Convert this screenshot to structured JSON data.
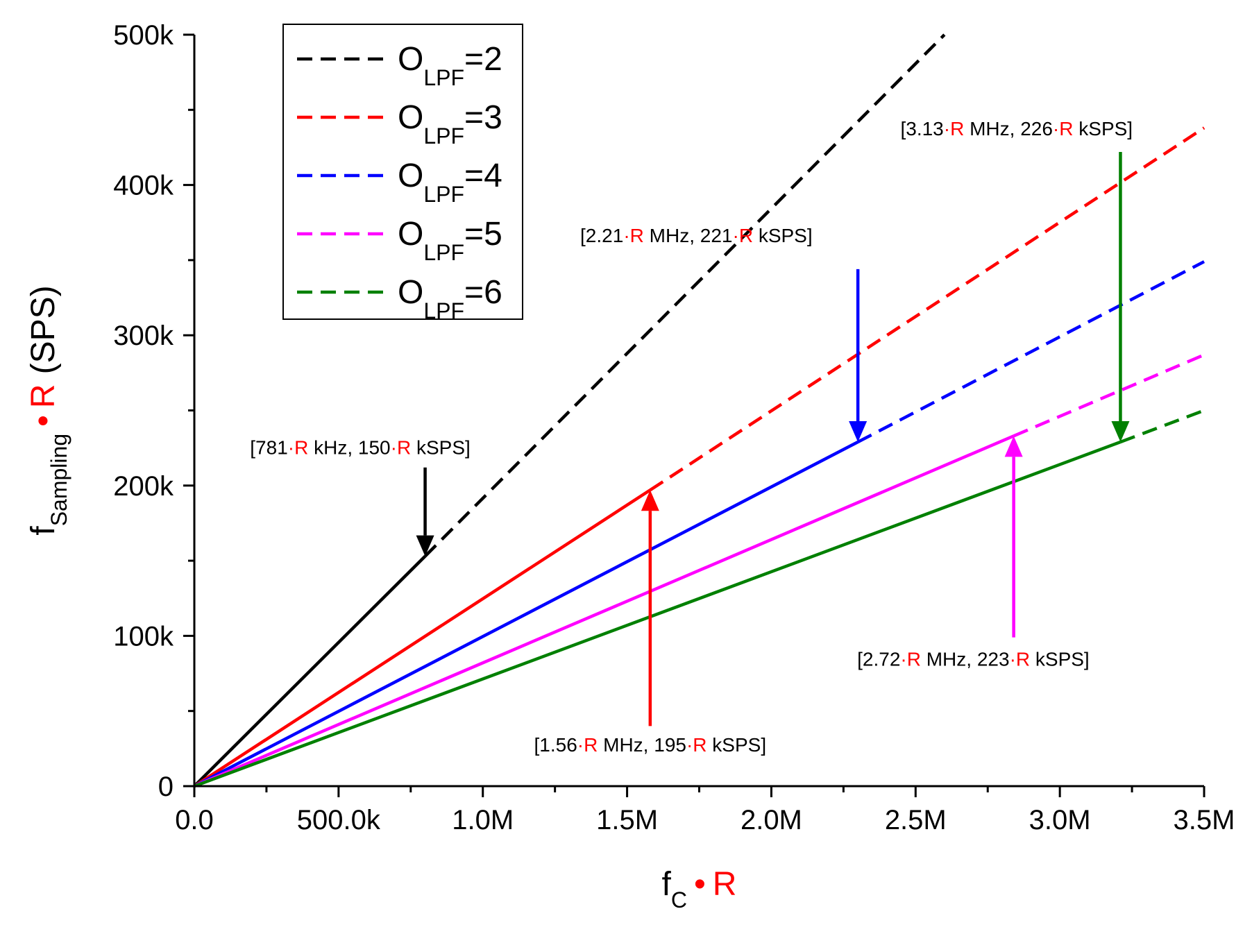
{
  "chart_data": {
    "type": "line",
    "xlabel": {
      "main": "f",
      "sub": "C",
      "dot": "•",
      "factor": "R"
    },
    "ylabel": {
      "main": "f",
      "sub": "Sampling",
      "dot": "•",
      "factor": "R",
      "unit": "(SPS)"
    },
    "xlim": [
      0,
      3500000
    ],
    "ylim": [
      0,
      500000
    ],
    "x_ticks": [
      {
        "value": 0,
        "label": "0.0"
      },
      {
        "value": 500000,
        "label": "500.0k"
      },
      {
        "value": 1000000,
        "label": "1.0M"
      },
      {
        "value": 1500000,
        "label": "1.5M"
      },
      {
        "value": 2000000,
        "label": "2.0M"
      },
      {
        "value": 2500000,
        "label": "2.5M"
      },
      {
        "value": 3000000,
        "label": "3.0M"
      },
      {
        "value": 3500000,
        "label": "3.5M"
      }
    ],
    "y_ticks": [
      {
        "value": 0,
        "label": "0"
      },
      {
        "value": 100000,
        "label": "100k"
      },
      {
        "value": 200000,
        "label": "200k"
      },
      {
        "value": 300000,
        "label": "300k"
      },
      {
        "value": 400000,
        "label": "400k"
      },
      {
        "value": 500000,
        "label": "500k"
      }
    ],
    "series": [
      {
        "name": "O_LPF=2",
        "legend_main": "O",
        "legend_sub": "LPF",
        "legend_val": "=2",
        "color": "#000000",
        "solid": {
          "x": [
            0,
            800000
          ],
          "y": [
            0,
            153000
          ]
        },
        "dashed": {
          "x": [
            800000,
            2600000
          ],
          "y": [
            153000,
            500000
          ]
        }
      },
      {
        "name": "O_LPF=3",
        "legend_main": "O",
        "legend_sub": "LPF",
        "legend_val": "=3",
        "color": "#ff0000",
        "solid": {
          "x": [
            0,
            1580000
          ],
          "y": [
            0,
            197000
          ]
        },
        "dashed": {
          "x": [
            1580000,
            3500000
          ],
          "y": [
            197000,
            438000
          ]
        }
      },
      {
        "name": "O_LPF=4",
        "legend_main": "O",
        "legend_sub": "LPF",
        "legend_val": "=4",
        "color": "#0000ff",
        "solid": {
          "x": [
            0,
            2300000
          ],
          "y": [
            0,
            229000
          ]
        },
        "dashed": {
          "x": [
            2300000,
            3500000
          ],
          "y": [
            229000,
            349000
          ]
        }
      },
      {
        "name": "O_LPF=5",
        "legend_main": "O",
        "legend_sub": "LPF",
        "legend_val": "=5",
        "color": "#ff00ff",
        "solid": {
          "x": [
            0,
            2840000
          ],
          "y": [
            0,
            233000
          ]
        },
        "dashed": {
          "x": [
            2840000,
            3500000
          ],
          "y": [
            233000,
            287000
          ]
        }
      },
      {
        "name": "O_LPF=6",
        "legend_main": "O",
        "legend_sub": "LPF",
        "legend_val": "=6",
        "color": "#008000",
        "solid": {
          "x": [
            0,
            3210000
          ],
          "y": [
            0,
            229000
          ]
        },
        "dashed": {
          "x": [
            3210000,
            3500000
          ],
          "y": [
            229000,
            250000
          ]
        }
      }
    ],
    "annotations": [
      {
        "series": "O_LPF=2",
        "color": "#000000",
        "direction": "down",
        "arrow": {
          "x": 800000,
          "from_y": 212000,
          "to_y": 153000
        },
        "label_at": {
          "x": 575000,
          "y": 221000
        },
        "parts": [
          {
            "t": "[781",
            "c": "#000000"
          },
          {
            "t": "·",
            "c": "#ff0000"
          },
          {
            "t": "R",
            "c": "#ff0000"
          },
          {
            "t": " kHz, 150",
            "c": "#000000"
          },
          {
            "t": "·",
            "c": "#ff0000"
          },
          {
            "t": "R",
            "c": "#ff0000"
          },
          {
            "t": " kSPS]",
            "c": "#000000"
          }
        ]
      },
      {
        "series": "O_LPF=3",
        "color": "#ff0000",
        "direction": "up",
        "arrow": {
          "x": 1580000,
          "from_y": 40000,
          "to_y": 197000
        },
        "label_at": {
          "x": 1580000,
          "y": 23000
        },
        "parts": [
          {
            "t": "[1.56",
            "c": "#000000"
          },
          {
            "t": "·",
            "c": "#ff0000"
          },
          {
            "t": "R",
            "c": "#ff0000"
          },
          {
            "t": " MHz, 195",
            "c": "#000000"
          },
          {
            "t": "·",
            "c": "#ff0000"
          },
          {
            "t": "R",
            "c": "#ff0000"
          },
          {
            "t": " kSPS]",
            "c": "#000000"
          }
        ]
      },
      {
        "series": "O_LPF=4",
        "color": "#0000ff",
        "direction": "down",
        "arrow": {
          "x": 2300000,
          "from_y": 344000,
          "to_y": 229000
        },
        "label_at": {
          "x": 1740000,
          "y": 362000
        },
        "parts": [
          {
            "t": "[2.21",
            "c": "#000000"
          },
          {
            "t": "·",
            "c": "#ff0000"
          },
          {
            "t": "R",
            "c": "#ff0000"
          },
          {
            "t": " MHz, 221",
            "c": "#000000"
          },
          {
            "t": "·",
            "c": "#ff0000"
          },
          {
            "t": "R",
            "c": "#ff0000"
          },
          {
            "t": " kSPS]",
            "c": "#000000"
          }
        ]
      },
      {
        "series": "O_LPF=5",
        "color": "#ff00ff",
        "direction": "up",
        "arrow": {
          "x": 2840000,
          "from_y": 99000,
          "to_y": 233000
        },
        "label_at": {
          "x": 2700000,
          "y": 80000
        },
        "parts": [
          {
            "t": "[2.72",
            "c": "#000000"
          },
          {
            "t": "·",
            "c": "#ff0000"
          },
          {
            "t": "R",
            "c": "#ff0000"
          },
          {
            "t": " MHz, 223",
            "c": "#000000"
          },
          {
            "t": "·",
            "c": "#ff0000"
          },
          {
            "t": "R",
            "c": "#ff0000"
          },
          {
            "t": " kSPS]",
            "c": "#000000"
          }
        ]
      },
      {
        "series": "O_LPF=6",
        "color": "#008000",
        "direction": "down",
        "arrow": {
          "x": 3210000,
          "from_y": 422000,
          "to_y": 229000
        },
        "label_at": {
          "x": 2850000,
          "y": 433000
        },
        "parts": [
          {
            "t": "[3.13",
            "c": "#000000"
          },
          {
            "t": "·",
            "c": "#ff0000"
          },
          {
            "t": "R",
            "c": "#ff0000"
          },
          {
            "t": " MHz, 226",
            "c": "#000000"
          },
          {
            "t": "·",
            "c": "#ff0000"
          },
          {
            "t": "R",
            "c": "#ff0000"
          },
          {
            "t": " kSPS]",
            "c": "#000000"
          }
        ]
      }
    ],
    "legend_position": "top-left",
    "grid": false
  }
}
